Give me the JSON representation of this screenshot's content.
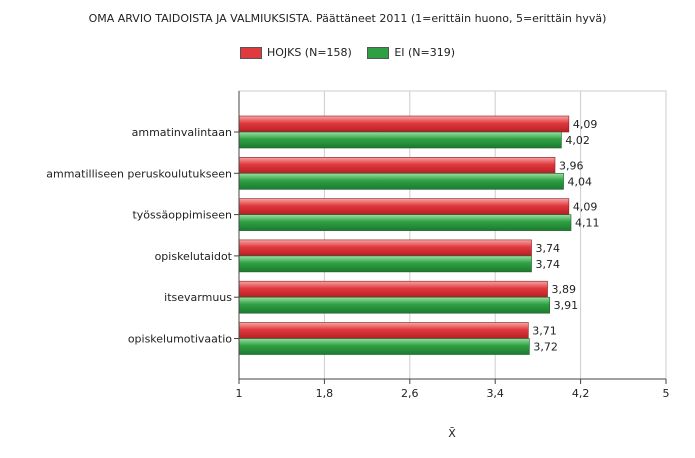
{
  "chart_data": {
    "type": "bar",
    "orientation": "horizontal",
    "title": "OMA ARVIO TAIDOISTA JA VALMIUKSISTA. Päättäneet 2011 (1=erittäin huono, 5=erittäin hyvä)",
    "categories": [
      "ammatinvalintaan",
      "ammatilliseen peruskoulutukseen",
      "työssäoppimiseen",
      "opiskelutaidot",
      "itsevarmuus",
      "opiskelumotivaatio"
    ],
    "series": [
      {
        "name": "HOJKS (N=158)",
        "color": "#e0393e",
        "values": [
          4.09,
          3.96,
          4.09,
          3.74,
          3.89,
          3.71
        ],
        "labels": [
          "4,09",
          "3,96",
          "4,09",
          "3,74",
          "3,89",
          "3,71"
        ]
      },
      {
        "name": "EI (N=319)",
        "color": "#2ea043",
        "values": [
          4.02,
          4.04,
          4.11,
          3.74,
          3.91,
          3.72
        ],
        "labels": [
          "4,02",
          "4,04",
          "4,11",
          "3,74",
          "3,91",
          "3,72"
        ]
      }
    ],
    "xlim": [
      1,
      5
    ],
    "xticks": [
      1,
      1.8,
      2.6,
      3.4,
      4.2,
      5
    ],
    "xtick_labels": [
      "1",
      "1,8",
      "2,6",
      "3,4",
      "4,2",
      "5"
    ],
    "xlabel": "X̄",
    "grid": "vertical",
    "legend": "top-center"
  }
}
